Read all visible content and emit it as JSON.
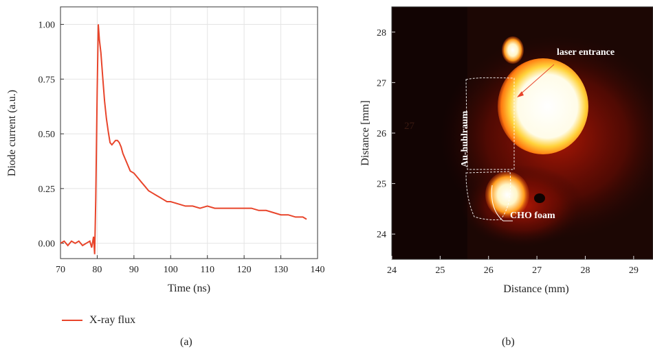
{
  "chart_data": [
    {
      "type": "line",
      "panel": "(a)",
      "xlabel": "Time (ns)",
      "ylabel": "Diode current (a.u.)",
      "xlim": [
        70,
        140
      ],
      "ylim": [
        -0.07,
        1.08
      ],
      "xticks": [
        70,
        80,
        90,
        100,
        110,
        120,
        130,
        140
      ],
      "yticks": [
        "0.00",
        "0.25",
        "0.50",
        "0.75",
        "1.00"
      ],
      "ytick_values": [
        0,
        0.25,
        0.5,
        0.75,
        1.0
      ],
      "grid": true,
      "legend_position": "bottom-left",
      "series": [
        {
          "name": "X-ray flux",
          "color": "#e8442a",
          "x": [
            70,
            71,
            72,
            73,
            74,
            75,
            76,
            77,
            78,
            78.5,
            79,
            79.3,
            79.6,
            80,
            80.3,
            80.6,
            81,
            81.5,
            82,
            82.5,
            83,
            83.5,
            84,
            84.5,
            85,
            85.5,
            86,
            86.5,
            87,
            88,
            89,
            90,
            91,
            92,
            93,
            94,
            95,
            96,
            97,
            98,
            99,
            100,
            102,
            104,
            106,
            108,
            110,
            112,
            114,
            116,
            118,
            120,
            122,
            124,
            126,
            128,
            130,
            132,
            134,
            136,
            137
          ],
          "y": [
            0.0,
            0.01,
            -0.01,
            0.01,
            0.0,
            0.01,
            -0.01,
            0.0,
            0.01,
            -0.02,
            0.03,
            -0.05,
            0.2,
            0.7,
            1.0,
            0.93,
            0.87,
            0.76,
            0.65,
            0.57,
            0.51,
            0.46,
            0.45,
            0.46,
            0.47,
            0.47,
            0.46,
            0.44,
            0.41,
            0.37,
            0.33,
            0.32,
            0.3,
            0.28,
            0.26,
            0.24,
            0.23,
            0.22,
            0.21,
            0.2,
            0.19,
            0.19,
            0.18,
            0.17,
            0.17,
            0.16,
            0.17,
            0.16,
            0.16,
            0.16,
            0.16,
            0.16,
            0.16,
            0.15,
            0.15,
            0.14,
            0.13,
            0.13,
            0.12,
            0.12,
            0.11
          ]
        }
      ]
    },
    {
      "type": "heatmap",
      "panel": "(b)",
      "xlabel": "Distance (mm)",
      "ylabel": "Distance [mm]",
      "xlim": [
        24,
        29.4
      ],
      "ylim": [
        23.5,
        28.5
      ],
      "xticks": [
        24,
        25,
        26,
        27,
        28,
        29
      ],
      "yticks": [
        24,
        25,
        26,
        27,
        28
      ],
      "annotations": [
        "laser entrance",
        "Au-huhlraum",
        "CHO foam",
        "27"
      ]
    }
  ]
}
